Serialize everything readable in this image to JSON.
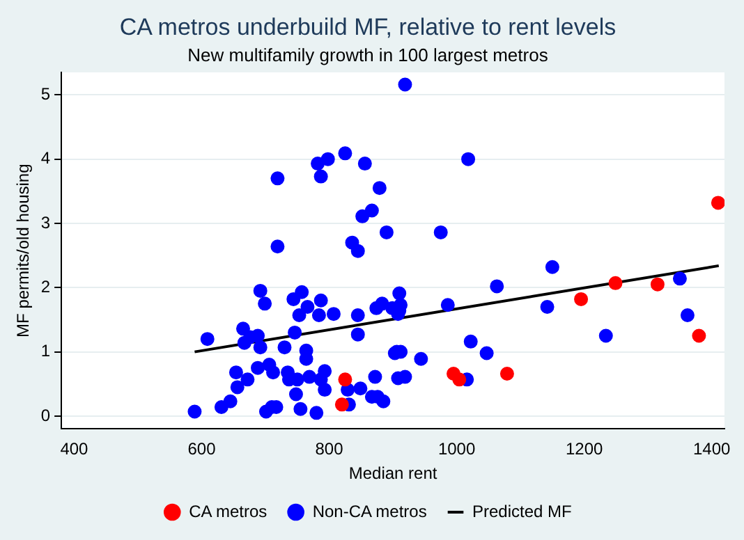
{
  "chart_data": {
    "type": "scatter",
    "title": "CA metros underbuild MF, relative to rent levels",
    "subtitle": "New multifamily growth in 100 largest metros",
    "xlabel": "Median rent",
    "ylabel": "MF permits/old housing",
    "xlim": [
      380,
      1420
    ],
    "xticks": [
      400,
      600,
      800,
      1000,
      1200,
      1400
    ],
    "ylim": [
      -0.2,
      5.35
    ],
    "yticks": [
      0,
      1,
      2,
      3,
      4,
      5
    ],
    "grid": "y",
    "legend": "bottom",
    "marker": "circle",
    "series": [
      {
        "name": "CA metros",
        "color": "#ff0000",
        "x": [
          1410,
          1380,
          1315,
          1249,
          1195,
          1079,
          995,
          1004,
          825,
          820
        ],
        "values": [
          3.32,
          1.25,
          2.05,
          2.07,
          1.82,
          0.66,
          0.66,
          0.57,
          0.57,
          0.18
        ]
      },
      {
        "name": "Non-CA metros",
        "color": "#0000ff",
        "x": [
          719,
          719,
          782,
          798,
          825,
          856,
          787,
          879,
          867,
          852,
          890,
          836,
          845,
          919,
          1018,
          975,
          1150,
          910,
          899,
          912,
          908,
          986,
          1063,
          1142,
          1350,
          1362,
          1234,
          1022,
          1047,
          944,
          903,
          912,
          919,
          1016,
          692,
          699,
          609,
          665,
          667,
          676,
          688,
          692,
          730,
          744,
          757,
          766,
          753,
          746,
          787,
          784,
          807,
          845,
          845,
          874,
          883,
          910,
          764,
          764,
          706,
          712,
          688,
          654,
          672,
          656,
          645,
          631,
          589,
          735,
          737,
          750,
          748,
          769,
          787,
          793,
          793,
          755,
          780,
          701,
          710,
          717,
          829,
          831,
          849,
          872,
          867,
          876,
          885,
          906,
          908
        ],
        "values": [
          3.7,
          2.64,
          3.93,
          4.0,
          4.09,
          3.93,
          3.73,
          3.55,
          3.2,
          3.11,
          2.86,
          2.7,
          2.57,
          5.16,
          4.0,
          2.86,
          2.32,
          1.91,
          1.68,
          1.73,
          1.59,
          1.73,
          2.02,
          1.7,
          2.14,
          1.57,
          1.25,
          1.16,
          0.98,
          0.89,
          0.98,
          1.0,
          0.61,
          0.57,
          1.95,
          1.75,
          1.2,
          1.36,
          1.14,
          1.23,
          1.25,
          1.07,
          1.07,
          1.82,
          1.93,
          1.7,
          1.57,
          1.3,
          1.8,
          1.57,
          1.59,
          1.57,
          1.27,
          1.68,
          1.75,
          1.64,
          1.02,
          0.89,
          0.8,
          0.68,
          0.75,
          0.68,
          0.57,
          0.45,
          0.23,
          0.14,
          0.07,
          0.68,
          0.57,
          0.57,
          0.34,
          0.61,
          0.57,
          0.7,
          0.41,
          0.11,
          0.05,
          0.07,
          0.14,
          0.14,
          0.41,
          0.18,
          0.43,
          0.61,
          0.3,
          0.3,
          0.23,
          1.0,
          0.59
        ]
      },
      {
        "name": "Predicted MF",
        "type": "line",
        "color": "#000000",
        "marker": "none",
        "x": [
          589,
          1411
        ],
        "values": [
          1.0,
          2.34
        ]
      }
    ]
  }
}
